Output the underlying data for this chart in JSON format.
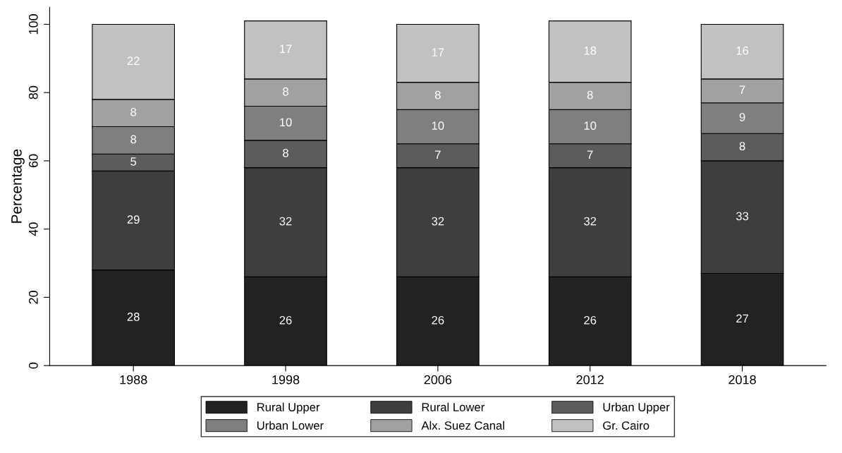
{
  "chart_data": {
    "type": "bar",
    "stacked": true,
    "ylabel": "Percentage",
    "categories": [
      "1988",
      "1998",
      "2006",
      "2012",
      "2018"
    ],
    "series": [
      {
        "name": "Rural Upper",
        "color": "#222222",
        "values": [
          28,
          26,
          26,
          26,
          27
        ]
      },
      {
        "name": "Rural Lower",
        "color": "#3e3e3e",
        "values": [
          29,
          32,
          32,
          32,
          33
        ]
      },
      {
        "name": "Urban Upper",
        "color": "#5c5c5c",
        "values": [
          5,
          8,
          7,
          7,
          8
        ]
      },
      {
        "name": "Urban Lower",
        "color": "#7f7f7f",
        "values": [
          8,
          10,
          10,
          10,
          9
        ]
      },
      {
        "name": "Alx. Suez Canal",
        "color": "#a1a1a1",
        "values": [
          8,
          8,
          8,
          8,
          7
        ]
      },
      {
        "name": "Gr. Cairo",
        "color": "#c1c1c1",
        "values": [
          22,
          17,
          17,
          18,
          16
        ]
      }
    ],
    "ylim": [
      0,
      105
    ],
    "yticks": [
      0,
      20,
      40,
      60,
      80,
      100
    ],
    "data_labels": true,
    "grid": false,
    "legend": "bottom"
  }
}
